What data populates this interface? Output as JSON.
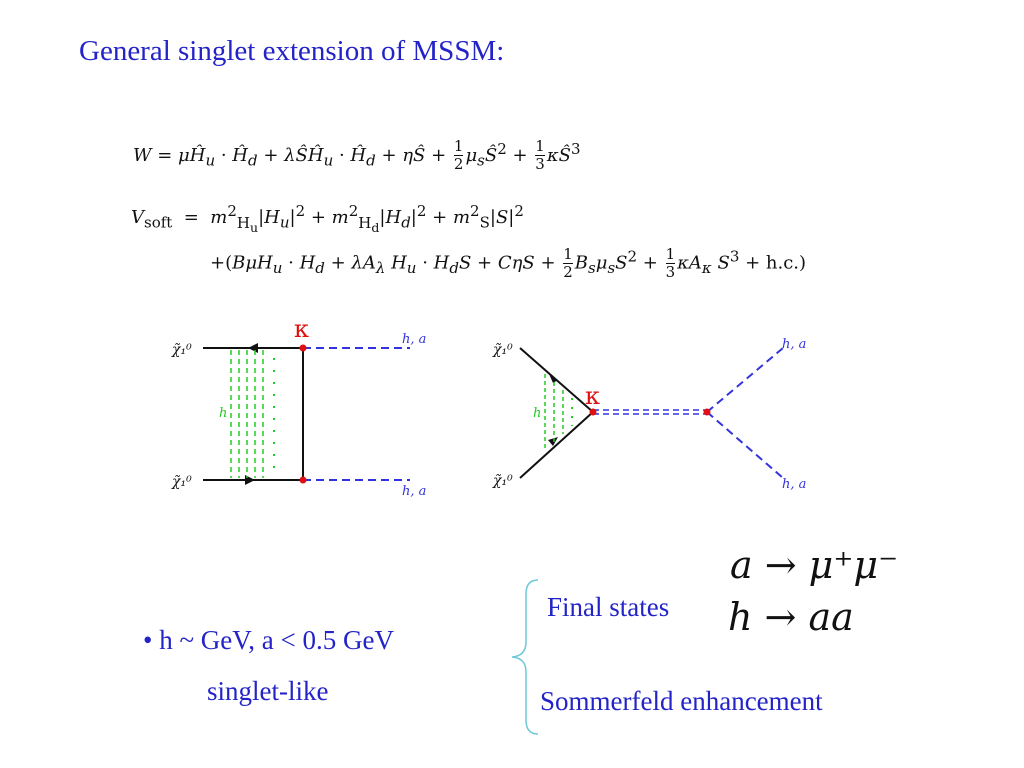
{
  "title": "General singlet extension of MSSM:",
  "equations": {
    "superpotential": "W = μĤ_u · Ĥ_d + λŜĤ_u · Ĥ_d + ηŜ + ½ μ_s Ŝ² + ⅓ κŜ³",
    "soft_line1": "V_soft = m²_Hu |H_u|² + m²_Hd |H_d|² + m²_S |S|²",
    "soft_line2": "+(BμH_u · H_d + λA_λ H_u · H_d S + CηS + ½ B_s μ_s S² + ⅓ κA_κ S³ + h.c.)"
  },
  "diagrams": {
    "box": {
      "coupling": "κ",
      "in_top": "χ̃₁⁰",
      "in_bottom": "χ̃₁⁰",
      "exchange": "h",
      "out_top": "h, a",
      "out_bottom": "h, a"
    },
    "vertex": {
      "coupling": "κ",
      "in_top": "χ̃₁⁰",
      "in_bottom": "χ̃₁⁰",
      "exchange": "h",
      "out_top": "h, a",
      "out_bottom": "h, a"
    }
  },
  "decays": {
    "first": "a → μ⁺μ⁻",
    "second": "h → aa"
  },
  "final_states_label": "Final states",
  "bullet": "• h ~ GeV, a < 0.5 GeV",
  "singlet_label": "singlet-like",
  "sommerfeld_label": "Sommerfeld enhancement",
  "colors": {
    "text_blue": "#2323c8",
    "kappa_red": "#e01010",
    "line_green": "#22cc22",
    "line_blue": "#3333dd",
    "brace": "#6fc8d8"
  }
}
